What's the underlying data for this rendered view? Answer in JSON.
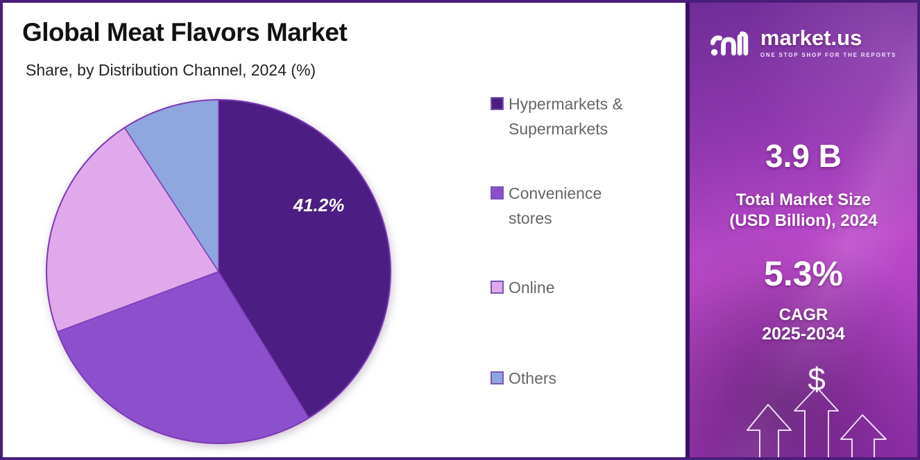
{
  "chart_data": {
    "type": "pie",
    "title": "Global Meat Flavors Market",
    "subtitle": "Share, by Distribution Channel, 2024 (%)",
    "labels": [
      "Hypermarkets & Supermarkets",
      "Convenience stores",
      "Online",
      "Others"
    ],
    "values": [
      41.2,
      28.1,
      21.5,
      9.2
    ],
    "colors": [
      "#4c1d82",
      "#8c50cc",
      "#dfa9ec",
      "#8fa6de"
    ],
    "data_labels": [
      "41.2%",
      "",
      "",
      ""
    ],
    "slice_stroke_color": "#7e3ab5",
    "start_angle_deg": 0,
    "direction": "clockwise",
    "legend_position": "right",
    "note": "only the 41.2% slice carries an on-chart data label; other values estimated from slice angles"
  },
  "sidebar": {
    "brand": {
      "name": "market.us",
      "tagline": "ONE STOP SHOP FOR THE REPORTS"
    },
    "market_size": {
      "value": "3.9 B",
      "label_line1": "Total Market Size",
      "label_line2": "(USD Billion), 2024"
    },
    "cagr": {
      "value": "5.3%",
      "label": "CAGR",
      "period": "2025-2034"
    },
    "dollar_symbol": "$",
    "accent_colors": {
      "gradient_top": "#6f2d97",
      "gradient_mid": "#bd4aca",
      "gradient_bottom": "#922fae",
      "frame_border": "#4a1d7a"
    }
  }
}
